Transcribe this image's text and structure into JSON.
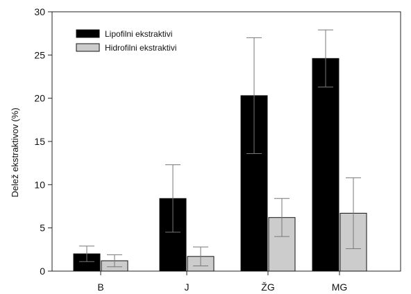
{
  "chart_data": {
    "type": "bar",
    "title": "",
    "xlabel": "",
    "ylabel": "Delež ekstraktivov (%)",
    "ylim": [
      0,
      30
    ],
    "yticks": [
      "0",
      "5",
      "10",
      "15",
      "20",
      "25",
      "30"
    ],
    "categories": [
      "B",
      "J",
      "ŽG",
      "MG"
    ],
    "legend_position": "top-left",
    "grid": false,
    "series": [
      {
        "name": "Lipofilni ekstraktivi",
        "color": "#000000",
        "values": [
          2.0,
          8.4,
          20.3,
          24.6
        ],
        "errors": [
          0.9,
          3.9,
          6.7,
          3.3
        ]
      },
      {
        "name": "Hidrofilni ekstraktivi",
        "color": "#cccccc",
        "values": [
          1.2,
          1.7,
          6.2,
          6.7
        ],
        "errors": [
          0.7,
          1.1,
          2.2,
          4.1
        ]
      }
    ]
  }
}
